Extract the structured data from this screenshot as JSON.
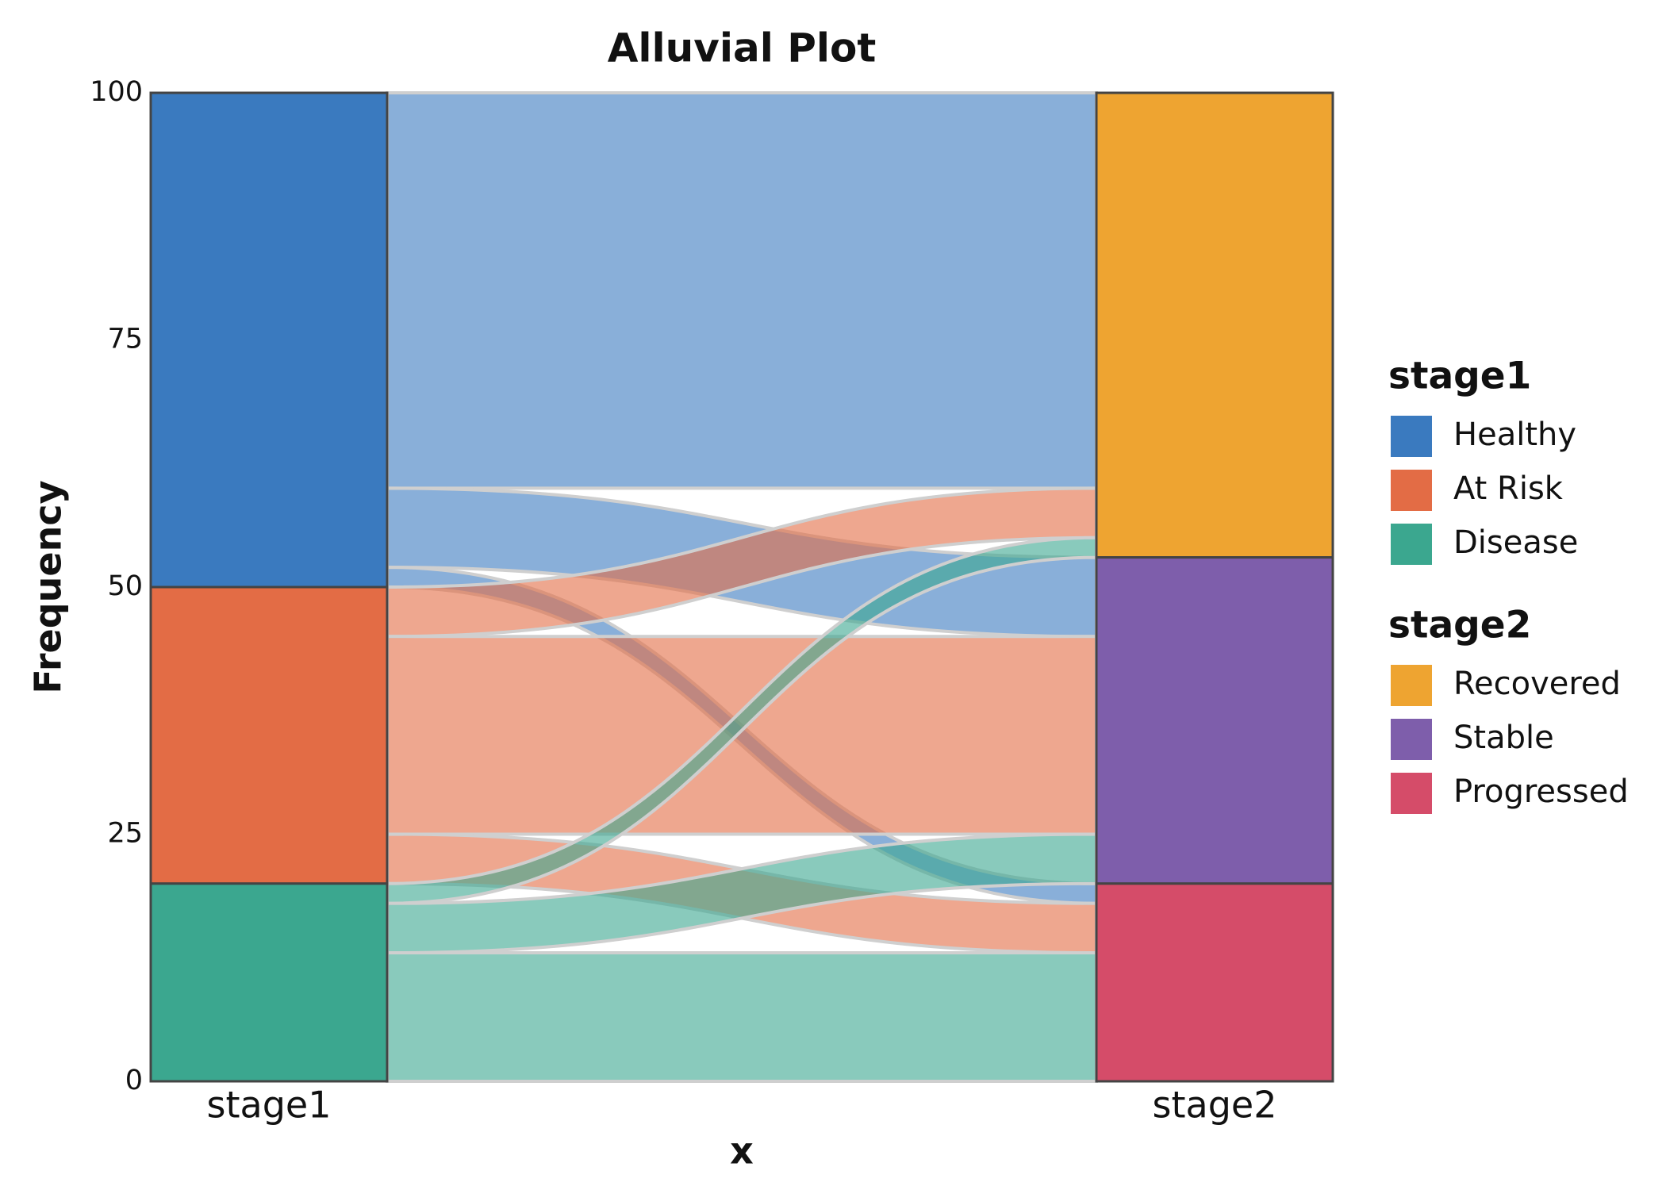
{
  "chart_data": {
    "type": "alluvial",
    "title": "Alluvial Plot",
    "x_label": "x",
    "y_label": "Frequency",
    "categories": [
      "stage1",
      "stage2"
    ],
    "ylim": [
      0,
      100
    ],
    "yticks": [
      0,
      25,
      50,
      75,
      100
    ],
    "stages": [
      {
        "groups": [
          {
            "name": "Healthy",
            "color": "#3a7abf"
          },
          {
            "name": "At Risk",
            "color": "#e36c45"
          },
          {
            "name": "Disease",
            "color": "#3ba78f"
          }
        ]
      },
      {
        "groups": [
          {
            "name": "Recovered",
            "color": "#eea431"
          },
          {
            "name": "Stable",
            "color": "#7e5eab"
          },
          {
            "name": "Progressed",
            "color": "#d54c69"
          }
        ]
      }
    ],
    "flows": [
      {
        "from": 0,
        "to": 0,
        "value": 40
      },
      {
        "from": 0,
        "to": 1,
        "value": 8
      },
      {
        "from": 0,
        "to": 2,
        "value": 2
      },
      {
        "from": 1,
        "to": 0,
        "value": 5
      },
      {
        "from": 1,
        "to": 1,
        "value": 20
      },
      {
        "from": 1,
        "to": 2,
        "value": 5
      },
      {
        "from": 2,
        "to": 0,
        "value": 2
      },
      {
        "from": 2,
        "to": 1,
        "value": 5
      },
      {
        "from": 2,
        "to": 2,
        "value": 13
      }
    ],
    "flow_opacity": 0.6
  }
}
